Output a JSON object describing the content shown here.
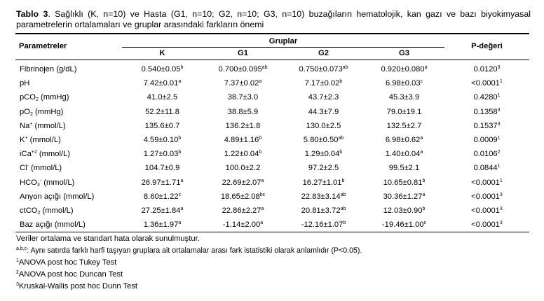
{
  "caption": {
    "label": "Tablo 3",
    "text": ". Sağlıklı (K, n=10) ve Hasta (G1, n=10; G2, n=10; G3, n=10) buzağıların hematolojik, kan gazı ve bazı biyokimyasal parametrelerin ortalamaları ve gruplar arasındaki farkların önemi"
  },
  "header": {
    "param_label": "Parametreler",
    "groups_label": "Gruplar",
    "p_label": "P-değeri",
    "groups": [
      "K",
      "G1",
      "G2",
      "G3"
    ]
  },
  "rows": [
    {
      "name": [
        [
          "Fibrinojen (g/dL)",
          ""
        ]
      ],
      "cells": [
        [
          "0.540±0.05",
          "b"
        ],
        [
          "0.700±0.095",
          "ab"
        ],
        [
          "0.750±0.073",
          "ab"
        ],
        [
          "0.920±0.080",
          "a"
        ]
      ],
      "p": [
        "0.0120",
        "3"
      ]
    },
    {
      "name": [
        [
          "pH",
          ""
        ]
      ],
      "cells": [
        [
          "7.42±0.01",
          "a"
        ],
        [
          "7.37±0.02",
          "a"
        ],
        [
          "7.17±0.02",
          "b"
        ],
        [
          "6.98±0.03",
          "c"
        ]
      ],
      "p": [
        "<0.0001",
        "1"
      ]
    },
    {
      "name": [
        [
          "pCO",
          ""
        ],
        [
          "2",
          "sub"
        ],
        [
          " (mmHg)",
          ""
        ]
      ],
      "cells": [
        [
          "41.0±2.5",
          ""
        ],
        [
          "38.7±3.0",
          ""
        ],
        [
          "43.7±2.3",
          ""
        ],
        [
          "45.3±3.9",
          ""
        ]
      ],
      "p": [
        "0.4280",
        "1"
      ]
    },
    {
      "name": [
        [
          "pO",
          ""
        ],
        [
          "2",
          "sub"
        ],
        [
          " (mmHg)",
          ""
        ]
      ],
      "cells": [
        [
          "52.2±11.8",
          ""
        ],
        [
          "38.8±5.9",
          ""
        ],
        [
          "44.3±7.9",
          ""
        ],
        [
          "79.0±19.1",
          ""
        ]
      ],
      "p": [
        "0.1358",
        "3"
      ]
    },
    {
      "name": [
        [
          "Na",
          ""
        ],
        [
          "+",
          "sup"
        ],
        [
          " (mmol/L)",
          ""
        ]
      ],
      "cells": [
        [
          "135.6±0.7",
          ""
        ],
        [
          "136.2±1.8",
          ""
        ],
        [
          "130.0±2.5",
          ""
        ],
        [
          "132.5±2.7",
          ""
        ]
      ],
      "p": [
        "0.1537",
        "3"
      ]
    },
    {
      "name": [
        [
          "K",
          ""
        ],
        [
          "+",
          "sup"
        ],
        [
          " (mmol/L)",
          ""
        ]
      ],
      "cells": [
        [
          "4.59±0.10",
          "b"
        ],
        [
          "4.89±1.16",
          "b"
        ],
        [
          "5.80±0.50",
          "ab"
        ],
        [
          "6.98±0.62",
          "a"
        ]
      ],
      "p": [
        "0.0009",
        "1"
      ]
    },
    {
      "name": [
        [
          "iCa",
          ""
        ],
        [
          "+2",
          "sup"
        ],
        [
          " (mmol/L)",
          ""
        ]
      ],
      "cells": [
        [
          "1.27±0.03",
          "b"
        ],
        [
          "1.22±0.04",
          "b"
        ],
        [
          "1.29±0.04",
          "b"
        ],
        [
          "1.40±0.04",
          "a"
        ]
      ],
      "p": [
        "0.0106",
        "2"
      ]
    },
    {
      "name": [
        [
          "Cl",
          ""
        ],
        [
          "-",
          "sup"
        ],
        [
          " (mmol/L)",
          ""
        ]
      ],
      "cells": [
        [
          "104.7±0.9",
          ""
        ],
        [
          "100.0±2.2",
          ""
        ],
        [
          "97.2±2.5",
          ""
        ],
        [
          "99.5±2.1",
          ""
        ]
      ],
      "p": [
        "0.0844",
        "1"
      ]
    },
    {
      "name": [
        [
          "HCO",
          ""
        ],
        [
          "3",
          "sub"
        ],
        [
          "-",
          "sup"
        ],
        [
          " (mmol/L)",
          ""
        ]
      ],
      "cells": [
        [
          "26.97±1.71",
          "a"
        ],
        [
          "22.69±2.07",
          "a"
        ],
        [
          "16.27±1.01",
          "b"
        ],
        [
          "10.65±0.81",
          "b"
        ]
      ],
      "p": [
        "<0.0001",
        "1"
      ]
    },
    {
      "name": [
        [
          "Anyon açığı (mmol/L)",
          ""
        ]
      ],
      "cells": [
        [
          "8.60±1.22",
          "c"
        ],
        [
          "18.65±2.08",
          "bc"
        ],
        [
          "22.83±3.14",
          "ab"
        ],
        [
          "30.36±1.27",
          "a"
        ]
      ],
      "p": [
        "<0.0001",
        "3"
      ]
    },
    {
      "name": [
        [
          "ctCO",
          ""
        ],
        [
          "2",
          "sub"
        ],
        [
          " (mmol/L)",
          ""
        ]
      ],
      "cells": [
        [
          "27.25±1.84",
          "a"
        ],
        [
          "22.86±2.27",
          "a"
        ],
        [
          "20.81±3.72",
          "ab"
        ],
        [
          "12.03±0.90",
          "b"
        ]
      ],
      "p": [
        "<0.0001",
        "3"
      ]
    },
    {
      "name": [
        [
          "Baz açığı (mmol/L)",
          ""
        ]
      ],
      "cells": [
        [
          "1.36±1.97",
          "a"
        ],
        [
          "-1.14±2.00",
          "a"
        ],
        [
          "-12.16±1.07",
          "b"
        ],
        [
          "-19.46±1.00",
          "c"
        ]
      ],
      "p": [
        "<0.0001",
        "3"
      ]
    }
  ],
  "notes": [
    {
      "sup": "",
      "text": "Veriler ortalama ve standart hata olarak sunulmuştur.",
      "small": false
    },
    {
      "sup": "a,b,c",
      "text": ": Aynı satırda farklı harfi taşıyan gruplara ait ortalamalar arası fark istatistiki olarak anlamlıdır (P<0.05).",
      "small": true
    },
    {
      "sup": "1",
      "text": "ANOVA post hoc Tukey Test",
      "small": false
    },
    {
      "sup": "2",
      "text": "ANOVA post hoc Duncan Test",
      "small": false
    },
    {
      "sup": "3",
      "text": "Kruskal-Wallis post hoc Dunn Test",
      "small": false
    }
  ]
}
